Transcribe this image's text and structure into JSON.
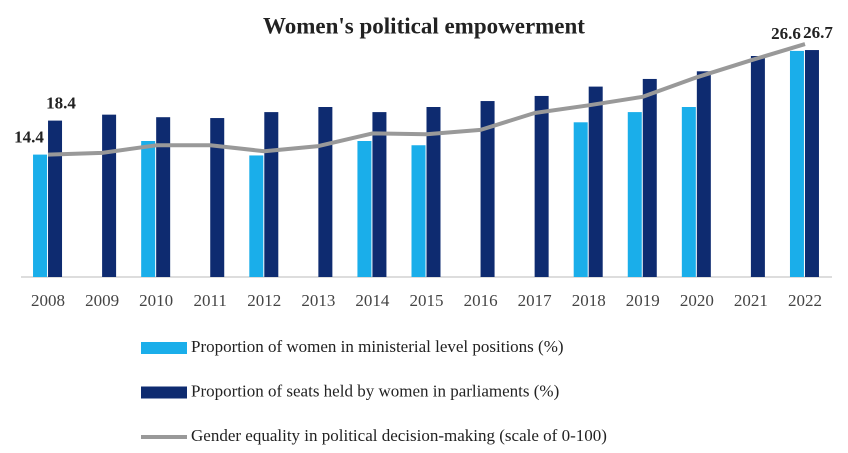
{
  "chart_data": {
    "type": "bar-line",
    "title": "Women's political empowerment",
    "categories": [
      "2008",
      "2009",
      "2010",
      "2011",
      "2012",
      "2013",
      "2014",
      "2015",
      "2016",
      "2017",
      "2018",
      "2019",
      "2020",
      "2021",
      "2022"
    ],
    "ylim": [
      0,
      30
    ],
    "series": [
      {
        "name": "Proportion of women in ministerial level positions (%)",
        "kind": "bar",
        "color": "#1aaeea",
        "values": [
          14.4,
          null,
          16.0,
          null,
          14.3,
          null,
          16.0,
          15.5,
          null,
          null,
          18.2,
          19.4,
          20.0,
          null,
          26.6
        ],
        "value_labels": [
          "14.4",
          null,
          null,
          null,
          null,
          null,
          null,
          null,
          null,
          null,
          null,
          null,
          null,
          null,
          "26.6"
        ]
      },
      {
        "name": "Proportion of seats held by women in parliaments (%)",
        "kind": "bar",
        "color": "#0e2b70",
        "values": [
          18.4,
          19.1,
          18.8,
          18.7,
          19.4,
          20.0,
          19.4,
          20.0,
          20.7,
          21.3,
          22.4,
          23.3,
          24.2,
          26.0,
          26.7
        ],
        "value_labels": [
          "18.4",
          null,
          null,
          null,
          null,
          null,
          null,
          null,
          null,
          null,
          null,
          null,
          null,
          null,
          "26.7"
        ]
      },
      {
        "name": "Gender equality in political decision-making (scale of 0-100)",
        "kind": "line",
        "color": "#999999",
        "values": [
          14.4,
          14.6,
          15.5,
          15.5,
          14.8,
          15.4,
          16.9,
          16.8,
          17.3,
          19.3,
          20.2,
          21.2,
          23.5,
          25.5,
          27.4
        ]
      }
    ]
  }
}
